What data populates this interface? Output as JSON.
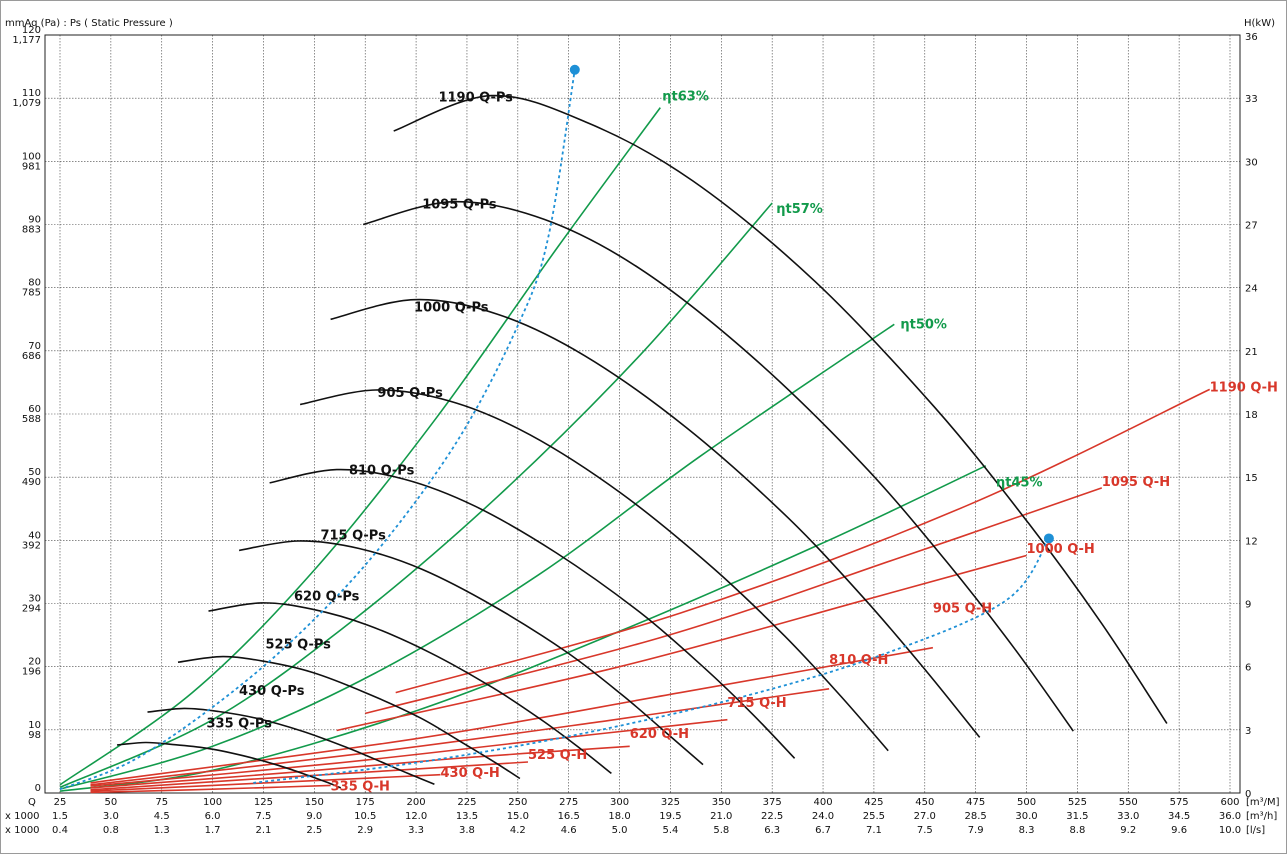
{
  "chart_data": {
    "type": "line",
    "y_left_title": "mmAq (Pa) : Ps ( Static Pressure )",
    "y_right_title": "H(kW)",
    "x_row_prefixes": [
      "Q",
      "x 1000",
      "x 1000"
    ],
    "x_row_units": [
      "[m³/M]",
      "[m³/h]",
      "[l/s]"
    ],
    "x_ticks_m3min": [
      "25",
      "50",
      "75",
      "100",
      "125",
      "150",
      "175",
      "200",
      "225",
      "250",
      "275",
      "300",
      "325",
      "350",
      "375",
      "400",
      "425",
      "450",
      "475",
      "500",
      "525",
      "550",
      "575",
      "600"
    ],
    "x_ticks_m3h": [
      "1.5",
      "3.0",
      "4.5",
      "6.0",
      "7.5",
      "9.0",
      "10.5",
      "12.0",
      "13.5",
      "15.0",
      "16.5",
      "18.0",
      "19.5",
      "21.0",
      "22.5",
      "24.0",
      "25.5",
      "27.0",
      "28.5",
      "30.0",
      "31.5",
      "33.0",
      "34.5",
      "36.0"
    ],
    "x_ticks_ls": [
      "0.4",
      "0.8",
      "1.3",
      "1.7",
      "2.1",
      "2.5",
      "2.9",
      "3.3",
      "3.8",
      "4.2",
      "4.6",
      "5.0",
      "5.4",
      "5.8",
      "6.3",
      "6.7",
      "7.1",
      "7.5",
      "7.9",
      "8.3",
      "8.8",
      "9.2",
      "9.6",
      "10.0"
    ],
    "y_left_ticks": [
      {
        "v": 0,
        "a": "0",
        "b": ""
      },
      {
        "v": 10,
        "a": "10",
        "b": "98"
      },
      {
        "v": 20,
        "a": "20",
        "b": "196"
      },
      {
        "v": 30,
        "a": "30",
        "b": "294"
      },
      {
        "v": 40,
        "a": "40",
        "b": "392"
      },
      {
        "v": 50,
        "a": "50",
        "b": "490"
      },
      {
        "v": 60,
        "a": "60",
        "b": "588"
      },
      {
        "v": 70,
        "a": "70",
        "b": "686"
      },
      {
        "v": 80,
        "a": "80",
        "b": "785"
      },
      {
        "v": 90,
        "a": "90",
        "b": "883"
      },
      {
        "v": 100,
        "a": "100",
        "b": "981"
      },
      {
        "v": 110,
        "a": "110",
        "b": "1,079"
      },
      {
        "v": 120,
        "a": "120",
        "b": "1,177"
      }
    ],
    "y_right_ticks": [
      "0",
      "3",
      "6",
      "9",
      "12",
      "15",
      "18",
      "21",
      "24",
      "27",
      "30",
      "33",
      "36"
    ],
    "x_range": [
      25,
      600
    ],
    "y_left_range": [
      0,
      120
    ],
    "y_right_range": [
      0,
      36
    ],
    "ps_curves": [
      {
        "name": "335 Q-Ps",
        "label_at": [
          97,
          10.4
        ],
        "points": [
          [
            53,
            7.6
          ],
          [
            67,
            8.0
          ],
          [
            80,
            7.7
          ],
          [
            97,
            7.1
          ],
          [
            115,
            5.9
          ],
          [
            132,
            4.4
          ],
          [
            146,
            2.9
          ],
          [
            157,
            1.6
          ],
          [
            163,
            0.8
          ]
        ]
      },
      {
        "name": "430 Q-Ps",
        "label_at": [
          113,
          15.5
        ],
        "points": [
          [
            68,
            12.8
          ],
          [
            86,
            13.4
          ],
          [
            103,
            12.9
          ],
          [
            122,
            11.8
          ],
          [
            144,
            9.8
          ],
          [
            166,
            7.2
          ],
          [
            183,
            4.9
          ],
          [
            196,
            3.1
          ],
          [
            209,
            1.4
          ]
        ]
      },
      {
        "name": "525 Q-Ps",
        "label_at": [
          126,
          22.9
        ],
        "points": [
          [
            83,
            20.7
          ],
          [
            105,
            21.6
          ],
          [
            126,
            20.8
          ],
          [
            149,
            19.1
          ],
          [
            175,
            15.9
          ],
          [
            202,
            11.9
          ],
          [
            222,
            8.1
          ],
          [
            238,
            5.0
          ],
          [
            251,
            2.3
          ]
        ]
      },
      {
        "name": "620 Q-Ps",
        "label_at": [
          140,
          30.5
        ],
        "points": [
          [
            98,
            28.8
          ],
          [
            124,
            30.1
          ],
          [
            149,
            29.1
          ],
          [
            176,
            26.6
          ],
          [
            207,
            22.2
          ],
          [
            238,
            16.6
          ],
          [
            262,
            11.5
          ],
          [
            280,
            7.2
          ],
          [
            296,
            3.1
          ]
        ]
      },
      {
        "name": "715 Q-Ps",
        "label_at": [
          153,
          40.1
        ],
        "points": [
          [
            113,
            38.4
          ],
          [
            142,
            39.9
          ],
          [
            172,
            38.7
          ],
          [
            203,
            35.4
          ],
          [
            238,
            29.6
          ],
          [
            274,
            22.3
          ],
          [
            301,
            15.6
          ],
          [
            322,
            9.8
          ],
          [
            341,
            4.5
          ]
        ]
      },
      {
        "name": "810 Q-Ps",
        "label_at": [
          167,
          50.4
        ],
        "points": [
          [
            128,
            49.1
          ],
          [
            161,
            51.2
          ],
          [
            194,
            49.7
          ],
          [
            229,
            45.4
          ],
          [
            269,
            38.0
          ],
          [
            310,
            28.6
          ],
          [
            341,
            20.0
          ],
          [
            365,
            12.6
          ],
          [
            386,
            5.5
          ]
        ]
      },
      {
        "name": "905 Q-Ps",
        "label_at": [
          181,
          62.7
        ],
        "points": [
          [
            143,
            61.5
          ],
          [
            180,
            63.8
          ],
          [
            217,
            62.0
          ],
          [
            256,
            56.7
          ],
          [
            301,
            47.4
          ],
          [
            346,
            35.6
          ],
          [
            381,
            24.9
          ],
          [
            408,
            15.6
          ],
          [
            432,
            6.7
          ]
        ]
      },
      {
        "name": "1000 Q-Ps",
        "label_at": [
          199,
          76.2
        ],
        "points": [
          [
            158,
            75.0
          ],
          [
            199,
            78.1
          ],
          [
            240,
            75.8
          ],
          [
            283,
            69.2
          ],
          [
            333,
            57.8
          ],
          [
            383,
            43.5
          ],
          [
            421,
            30.5
          ],
          [
            451,
            19.2
          ],
          [
            477,
            8.8
          ]
        ]
      },
      {
        "name": "1095 Q-Ps",
        "label_at": [
          203,
          92.5
        ],
        "points": [
          [
            174,
            90.0
          ],
          [
            218,
            93.6
          ],
          [
            263,
            90.8
          ],
          [
            310,
            83.0
          ],
          [
            364,
            69.4
          ],
          [
            419,
            52.2
          ],
          [
            461,
            36.5
          ],
          [
            494,
            22.9
          ],
          [
            523,
            9.8
          ]
        ]
      },
      {
        "name": "1190 Q-Ps",
        "label_at": [
          211,
          109.5
        ],
        "points": [
          [
            189,
            104.8
          ],
          [
            237,
            110.4
          ],
          [
            285,
            106.0
          ],
          [
            336,
            96.9
          ],
          [
            396,
            81.0
          ],
          [
            455,
            61.0
          ],
          [
            501,
            42.7
          ],
          [
            537,
            26.8
          ],
          [
            569,
            11.0
          ]
        ]
      }
    ],
    "power_curves": [
      {
        "name": "335 Q-H",
        "label_at": [
          158,
          0.4
        ],
        "points": [
          [
            40,
            0.1
          ],
          [
            90,
            0.5
          ],
          [
            130,
            0.9
          ],
          [
            158,
            1.2
          ]
        ]
      },
      {
        "name": "430 Q-H",
        "label_at": [
          212,
          2.5
        ],
        "points": [
          [
            40,
            0.3
          ],
          [
            100,
            1.2
          ],
          [
            160,
            2.1
          ],
          [
            212,
            2.9
          ]
        ]
      },
      {
        "name": "525 Q-H",
        "label_at": [
          255,
          5.4
        ],
        "points": [
          [
            40,
            0.5
          ],
          [
            120,
            2.2
          ],
          [
            190,
            3.6
          ],
          [
            255,
            4.9
          ]
        ]
      },
      {
        "name": "620 Q-H",
        "label_at": [
          305,
          8.7
        ],
        "points": [
          [
            40,
            0.8
          ],
          [
            140,
            3.3
          ],
          [
            225,
            5.6
          ],
          [
            305,
            7.4
          ]
        ]
      },
      {
        "name": "715 Q-H",
        "label_at": [
          353,
          13.6
        ],
        "points": [
          [
            40,
            1.1
          ],
          [
            160,
            4.7
          ],
          [
            260,
            8.3
          ],
          [
            353,
            11.6
          ]
        ]
      },
      {
        "name": "810 Q-H",
        "label_at": [
          403,
          20.4
        ],
        "points": [
          [
            40,
            1.3
          ],
          [
            180,
            6.5
          ],
          [
            295,
            11.5
          ],
          [
            403,
            16.5
          ]
        ]
      },
      {
        "name": "905 Q-H",
        "label_at": [
          454,
          28.6
        ],
        "points": [
          [
            40,
            1.6
          ],
          [
            200,
            8.6
          ],
          [
            330,
            15.9
          ],
          [
            454,
            23.0
          ]
        ]
      },
      {
        "name": "1000 Q-H",
        "label_at": [
          500,
          38.0
        ],
        "points": [
          [
            161,
            9.9
          ],
          [
            300,
            20.0
          ],
          [
            420,
            30.5
          ],
          [
            500,
            37.6
          ]
        ]
      },
      {
        "name": "1095 Q-H",
        "label_at": [
          537,
          48.6
        ],
        "points": [
          [
            175,
            12.6
          ],
          [
            320,
            24.6
          ],
          [
            440,
            37.5
          ],
          [
            537,
            48.3
          ]
        ]
      },
      {
        "name": "1190 Q-H",
        "label_at": [
          590,
          63.6
        ],
        "points": [
          [
            190,
            15.9
          ],
          [
            330,
            28.5
          ],
          [
            470,
            45.4
          ],
          [
            590,
            63.9
          ]
        ]
      }
    ],
    "efficiency_curves": [
      {
        "name": "ηt45%",
        "label_at": [
          485,
          48.5
        ],
        "points": [
          [
            25,
            0.3
          ],
          [
            100,
            3.6
          ],
          [
            200,
            13.0
          ],
          [
            300,
            25.6
          ],
          [
            400,
            39.6
          ],
          [
            480,
            51.8
          ]
        ]
      },
      {
        "name": "ηt50%",
        "label_at": [
          438,
          73.5
        ],
        "points": [
          [
            25,
            0.6
          ],
          [
            100,
            7.4
          ],
          [
            180,
            19.0
          ],
          [
            260,
            34.5
          ],
          [
            340,
            53.4
          ],
          [
            435,
            74.2
          ]
        ]
      },
      {
        "name": "ηt57%",
        "label_at": [
          377,
          91.8
        ],
        "points": [
          [
            25,
            0.9
          ],
          [
            100,
            11.6
          ],
          [
            170,
            27.6
          ],
          [
            240,
            46.9
          ],
          [
            310,
            69.3
          ],
          [
            375,
            93.4
          ]
        ]
      },
      {
        "name": "ηt63%",
        "label_at": [
          321,
          109.6
        ],
        "points": [
          [
            25,
            1.3
          ],
          [
            90,
            15.9
          ],
          [
            150,
            35.3
          ],
          [
            210,
            59.4
          ],
          [
            270,
            86.6
          ],
          [
            320,
            108.5
          ]
        ]
      }
    ],
    "boundary_curves": [
      {
        "name": "upper-limit",
        "points": [
          [
            25,
            0.6
          ],
          [
            60,
            5.0
          ],
          [
            100,
            13.6
          ],
          [
            140,
            24.4
          ],
          [
            180,
            38.0
          ],
          [
            220,
            55.6
          ],
          [
            250,
            74.0
          ],
          [
            265,
            88.0
          ],
          [
            278,
            114.5
          ]
        ],
        "end_marker": true
      },
      {
        "name": "lower-limit",
        "points": [
          [
            120,
            1.6
          ],
          [
            200,
            4.8
          ],
          [
            280,
            9.3
          ],
          [
            360,
            15.2
          ],
          [
            430,
            22.0
          ],
          [
            490,
            30.5
          ],
          [
            511,
            40.3
          ]
        ],
        "end_marker": true
      }
    ],
    "colors": {
      "ps": "#111111",
      "power": "#d8372a",
      "efficiency": "#129a4b",
      "boundary": "#1e90d6",
      "grid": "#444444",
      "frame": "#9a9a9a"
    },
    "grid": true
  }
}
